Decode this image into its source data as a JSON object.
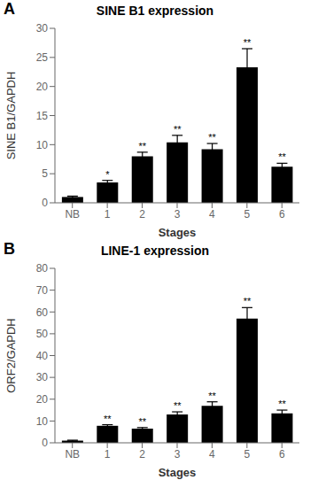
{
  "chart_data": [
    {
      "type": "bar",
      "panel_label": "A",
      "title": "SINE B1 expression",
      "xlabel": "Stages",
      "ylabel": "SINE B1/GAPDH",
      "categories": [
        "NB",
        "1",
        "2",
        "3",
        "4",
        "5",
        "6"
      ],
      "values": [
        1.0,
        3.5,
        8.0,
        10.4,
        9.2,
        23.3,
        6.2
      ],
      "errors": [
        0.15,
        0.35,
        0.7,
        1.2,
        1.0,
        3.2,
        0.6
      ],
      "annotations": [
        {
          "category": "1",
          "text": "*"
        },
        {
          "category": "2",
          "text": "**"
        },
        {
          "category": "3",
          "text": "**"
        },
        {
          "category": "4",
          "text": "**"
        },
        {
          "category": "5",
          "text": "**"
        },
        {
          "category": "6",
          "text": "**"
        }
      ],
      "ylim": [
        0,
        30
      ],
      "yticks": [
        0,
        5,
        10,
        15,
        20,
        25,
        30
      ],
      "color": "#000000"
    },
    {
      "type": "bar",
      "panel_label": "B",
      "title": "LINE-1 expression",
      "xlabel": "Stages",
      "ylabel": "ORF2/GAPDH",
      "categories": [
        "NB",
        "1",
        "2",
        "3",
        "4",
        "5",
        "6"
      ],
      "values": [
        1.0,
        7.8,
        6.5,
        13.0,
        17.0,
        57.0,
        13.5
      ],
      "errors": [
        0.2,
        0.5,
        0.5,
        1.2,
        1.8,
        5.0,
        1.5
      ],
      "annotations": [
        {
          "category": "1",
          "text": "**"
        },
        {
          "category": "2",
          "text": "**"
        },
        {
          "category": "3",
          "text": "**"
        },
        {
          "category": "4",
          "text": "**"
        },
        {
          "category": "5",
          "text": "**"
        },
        {
          "category": "6",
          "text": "**"
        }
      ],
      "ylim": [
        0,
        80
      ],
      "yticks": [
        0,
        10,
        20,
        30,
        40,
        50,
        60,
        70,
        80
      ],
      "color": "#000000"
    }
  ]
}
